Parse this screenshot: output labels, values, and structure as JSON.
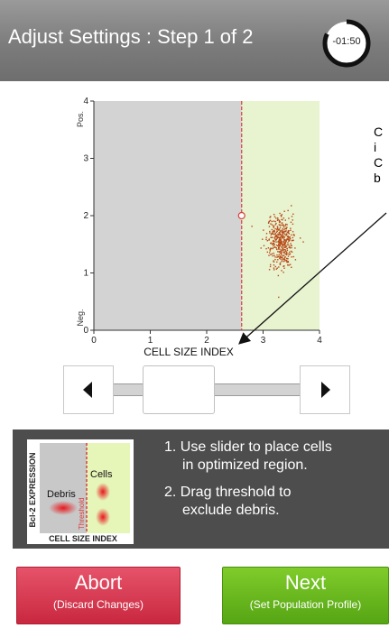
{
  "header": {
    "title": "Adjust Settings : Step 1 of 2",
    "timer": "-01:50",
    "timer_progress": 0.82
  },
  "plot": {
    "y_axis_title": "Bcl-2 EXPRESSION",
    "x_axis_title": "CELL SIZE INDEX",
    "y_pos_label": "Pos.",
    "y_neg_label": "Neg.",
    "x_ticks": [
      "0",
      "1",
      "2",
      "3",
      "4"
    ],
    "y_ticks": [
      "0",
      "1",
      "2",
      "3",
      "4"
    ],
    "xlim": [
      0,
      4
    ],
    "ylim": [
      0,
      4
    ],
    "threshold_x": 2.62,
    "threshold_handle_y": 2.0,
    "cluster": {
      "center_x": 3.3,
      "center_y": 1.55,
      "spread_x": 0.22,
      "spread_y": 0.4,
      "count": 420
    },
    "colors": {
      "debris_region": "#d3d3d3",
      "cells_region": "#e8f3d0",
      "threshold": "#d8403c",
      "dots": "#b84a1a"
    }
  },
  "callout": {
    "lines": [
      "C",
      "i",
      "C",
      "b"
    ]
  },
  "slider": {
    "left_arrow": "◀",
    "right_arrow": "▶"
  },
  "instructions": {
    "mini_y_label": "Bcl-2 EXPRESSION",
    "mini_x_label": "CELL SIZE INDEX",
    "mini_debris": "Debris",
    "mini_cells": "Cells",
    "mini_threshold": "Threshold",
    "step1_line1": "1. Use slider to place cells",
    "step1_line2": "in optimized region.",
    "step2_line1": "2. Drag threshold to",
    "step2_line2": "exclude debris."
  },
  "buttons": {
    "abort_label": "Abort",
    "abort_sub": "(Discard Changes)",
    "next_label": "Next",
    "next_sub": "(Set Population Profile)"
  }
}
